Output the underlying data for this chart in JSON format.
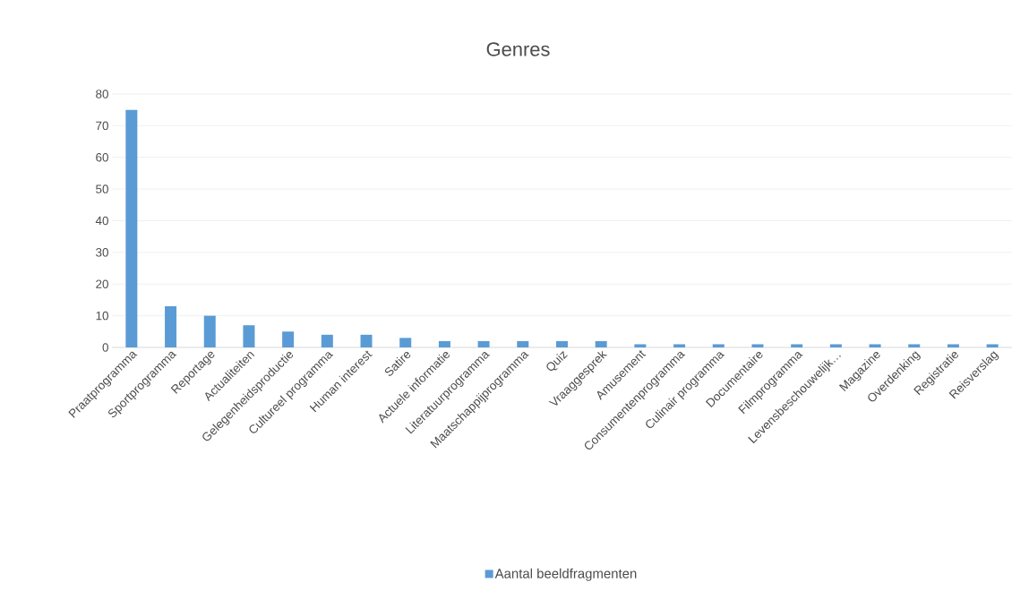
{
  "chart_data": {
    "type": "bar",
    "title": "Genres",
    "categories": [
      "Praatprogramma",
      "Sportprogramma",
      "Reportage",
      "Actualiteiten",
      "Gelegenheidsproductie",
      "Cultureel programma",
      "Human interest",
      "Satire",
      "Actuele informatie",
      "Literatuurprogramma",
      "Maatschappijprogramma",
      "Quiz",
      "Vraaggesprek",
      "Amusement",
      "Consumentenprogramma",
      "Culinair programma",
      "Documentaire",
      "Filmprogramma",
      "Levensbeschouwelijk…",
      "Magazine",
      "Overdenking",
      "Registratie",
      "Reisverslag"
    ],
    "series": [
      {
        "name": "Aantal beeldfragmenten",
        "color": "#5b9bd5",
        "values": [
          75,
          13,
          10,
          7,
          5,
          4,
          4,
          3,
          2,
          2,
          2,
          2,
          2,
          1,
          1,
          1,
          1,
          1,
          1,
          1,
          1,
          1,
          1
        ]
      }
    ],
    "ylim": [
      0,
      80
    ],
    "yticks": [
      0,
      10,
      20,
      30,
      40,
      50,
      60,
      70,
      80
    ],
    "grid": "y",
    "legend": "bottom"
  }
}
